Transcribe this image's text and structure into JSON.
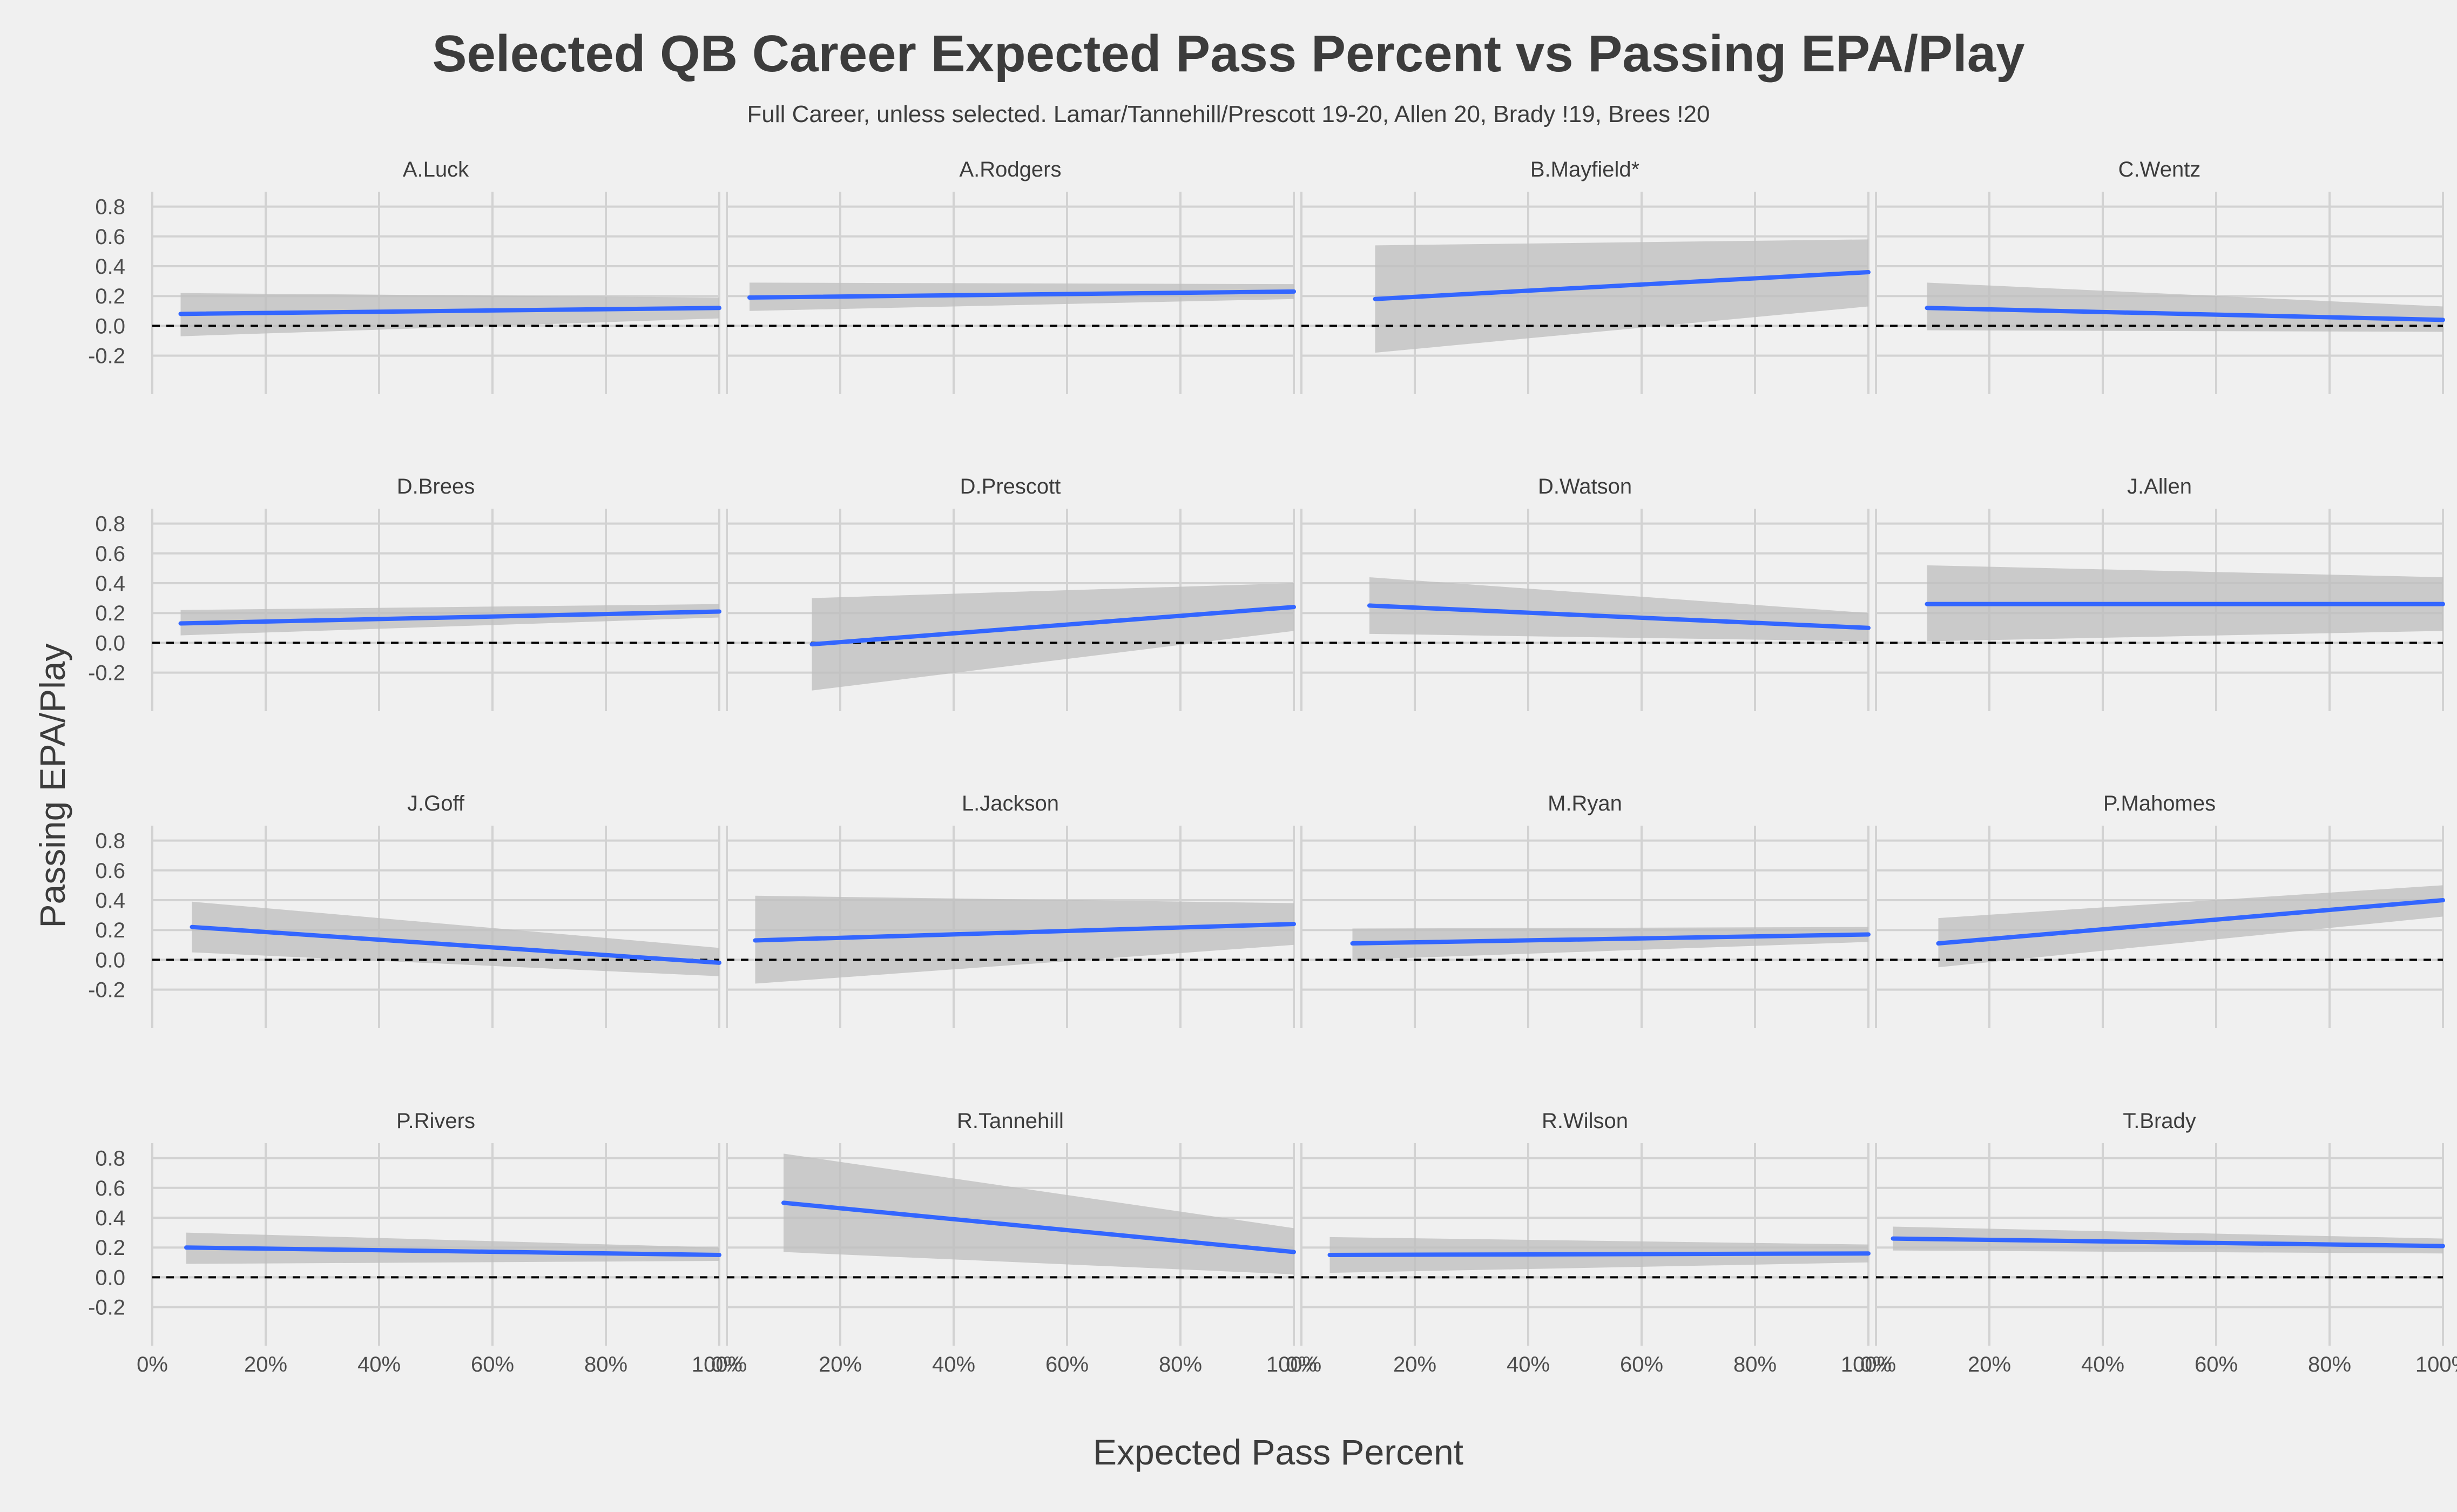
{
  "chart_data": {
    "type": "line",
    "title": "Selected QB Career Expected Pass Percent vs Passing EPA/Play",
    "subtitle": "Full Career, unless selected. Lamar/Tannehill/Prescott 19-20, Allen 20, Brady !19, Brees !20",
    "xlabel": "Expected Pass Percent",
    "ylabel": "Passing EPA/Play",
    "xlim": [
      0,
      1
    ],
    "ylim": [
      -0.35,
      0.9
    ],
    "x_ticks": [
      0,
      0.2,
      0.4,
      0.6,
      0.8,
      1.0
    ],
    "x_tick_labels": [
      "0%",
      "20%",
      "40%",
      "60%",
      "80%",
      "100%"
    ],
    "y_ticks": [
      -0.2,
      0.0,
      0.2,
      0.4,
      0.6,
      0.8
    ],
    "y_tick_labels": [
      "-0.2",
      "0.0",
      "0.2",
      "0.4",
      "0.6",
      "0.8"
    ],
    "reference_line": {
      "y": 0,
      "style": "dashed"
    },
    "grid": true,
    "colors": {
      "line": "#3366ff",
      "ribbon": "#bdbdbd",
      "background": "#f0f0f0",
      "grid": "#d2d2d2"
    },
    "facets": [
      {
        "name": "A.Luck",
        "x": [
          0.05,
          1.0
        ],
        "y": [
          0.08,
          0.12
        ],
        "lower": [
          -0.07,
          0.05
        ],
        "upper": [
          0.22,
          0.19
        ]
      },
      {
        "name": "A.Rodgers",
        "x": [
          0.04,
          1.0
        ],
        "y": [
          0.19,
          0.23
        ],
        "lower": [
          0.1,
          0.18
        ],
        "upper": [
          0.29,
          0.28
        ]
      },
      {
        "name": "B.Mayfield*",
        "x": [
          0.13,
          1.0
        ],
        "y": [
          0.18,
          0.36
        ],
        "lower": [
          -0.18,
          0.13
        ],
        "upper": [
          0.54,
          0.58
        ]
      },
      {
        "name": "C.Wentz",
        "x": [
          0.09,
          1.0
        ],
        "y": [
          0.12,
          0.04
        ],
        "lower": [
          -0.03,
          -0.04
        ],
        "upper": [
          0.29,
          0.13
        ]
      },
      {
        "name": "D.Brees",
        "x": [
          0.05,
          1.0
        ],
        "y": [
          0.13,
          0.21
        ],
        "lower": [
          0.05,
          0.17
        ],
        "upper": [
          0.22,
          0.26
        ]
      },
      {
        "name": "D.Prescott",
        "x": [
          0.15,
          1.0
        ],
        "y": [
          -0.01,
          0.24
        ],
        "lower": [
          -0.32,
          0.08
        ],
        "upper": [
          0.3,
          0.4
        ]
      },
      {
        "name": "D.Watson",
        "x": [
          0.12,
          1.0
        ],
        "y": [
          0.25,
          0.1
        ],
        "lower": [
          0.06,
          0.01
        ],
        "upper": [
          0.44,
          0.2
        ]
      },
      {
        "name": "J.Allen",
        "x": [
          0.09,
          1.0
        ],
        "y": [
          0.26,
          0.26
        ],
        "lower": [
          0.01,
          0.08
        ],
        "upper": [
          0.52,
          0.44
        ]
      },
      {
        "name": "J.Goff",
        "x": [
          0.07,
          1.0
        ],
        "y": [
          0.22,
          -0.02
        ],
        "lower": [
          0.05,
          -0.11
        ],
        "upper": [
          0.39,
          0.08
        ]
      },
      {
        "name": "L.Jackson",
        "x": [
          0.05,
          1.0
        ],
        "y": [
          0.13,
          0.24
        ],
        "lower": [
          -0.16,
          0.1
        ],
        "upper": [
          0.43,
          0.38
        ]
      },
      {
        "name": "M.Ryan",
        "x": [
          0.09,
          1.0
        ],
        "y": [
          0.11,
          0.17
        ],
        "lower": [
          0.0,
          0.12
        ],
        "upper": [
          0.21,
          0.22
        ]
      },
      {
        "name": "P.Mahomes",
        "x": [
          0.11,
          1.0
        ],
        "y": [
          0.11,
          0.4
        ],
        "lower": [
          -0.05,
          0.29
        ],
        "upper": [
          0.28,
          0.5
        ]
      },
      {
        "name": "P.Rivers",
        "x": [
          0.06,
          1.0
        ],
        "y": [
          0.2,
          0.15
        ],
        "lower": [
          0.09,
          0.11
        ],
        "upper": [
          0.3,
          0.2
        ]
      },
      {
        "name": "R.Tannehill",
        "x": [
          0.1,
          1.0
        ],
        "y": [
          0.5,
          0.17
        ],
        "lower": [
          0.17,
          0.02
        ],
        "upper": [
          0.83,
          0.33
        ]
      },
      {
        "name": "R.Wilson",
        "x": [
          0.05,
          1.0
        ],
        "y": [
          0.15,
          0.16
        ],
        "lower": [
          0.03,
          0.1
        ],
        "upper": [
          0.27,
          0.22
        ]
      },
      {
        "name": "T.Brady",
        "x": [
          0.03,
          1.0
        ],
        "y": [
          0.26,
          0.21
        ],
        "lower": [
          0.18,
          0.16
        ],
        "upper": [
          0.34,
          0.26
        ]
      }
    ]
  }
}
